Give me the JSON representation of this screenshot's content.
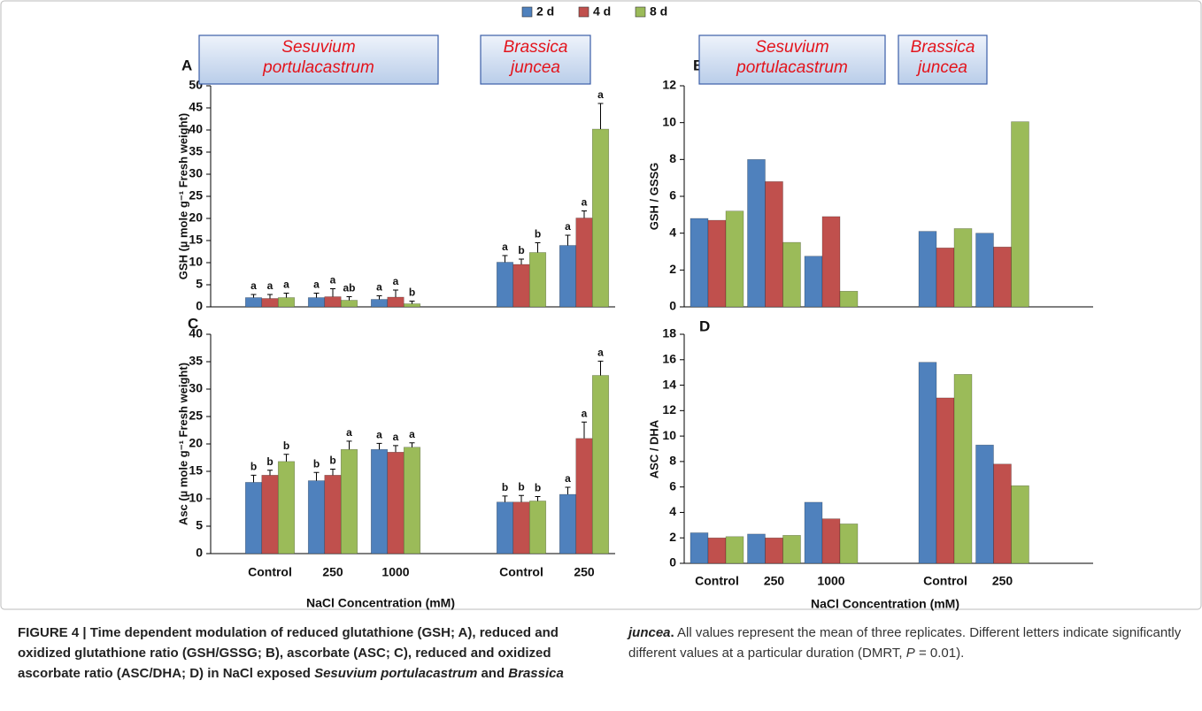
{
  "chart_data": [
    {
      "type": "bar",
      "panel": "A",
      "ylabel": "GSH (µ mole g⁻¹ Fresh weight)",
      "groups": [
        "Sesuvium portulacastrum",
        "Brassica juncea"
      ],
      "categories": [
        null,
        null,
        null,
        null,
        null,
        null
      ],
      "ylim": [
        0,
        50
      ],
      "yticks": [
        0,
        5,
        10,
        15,
        20,
        25,
        30,
        35,
        40,
        45,
        50
      ],
      "series": [
        {
          "name": "2 d",
          "color": "#4f81bd",
          "values": [
            2.1,
            2.1,
            1.7,
            null,
            10.1,
            13.9
          ],
          "errors": [
            0.7,
            1.0,
            0.8,
            null,
            1.5,
            2.3
          ],
          "letters": [
            "a",
            "a",
            "a",
            null,
            "a",
            "a"
          ]
        },
        {
          "name": "4 d",
          "color": "#c0504d",
          "values": [
            1.9,
            2.3,
            2.2,
            null,
            9.6,
            20.1
          ],
          "errors": [
            0.9,
            1.8,
            1.6,
            null,
            1.2,
            1.6
          ],
          "letters": [
            "a",
            "a",
            "a",
            null,
            "b",
            "a"
          ]
        },
        {
          "name": "8 d",
          "color": "#9bbb59",
          "values": [
            2.1,
            1.5,
            0.7,
            null,
            12.3,
            40.2
          ],
          "errors": [
            1.0,
            0.8,
            0.6,
            null,
            2.2,
            5.8
          ],
          "letters": [
            "a",
            "ab",
            "b",
            null,
            "b",
            "a"
          ]
        }
      ]
    },
    {
      "type": "bar",
      "panel": "B",
      "ylabel": "GSH / GSSG",
      "groups": [
        "Sesuvium portulacastrum",
        "Brassica juncea"
      ],
      "categories": [
        null,
        null,
        null,
        null,
        null,
        null
      ],
      "ylim": [
        0,
        12
      ],
      "yticks": [
        0,
        2,
        4,
        6,
        8,
        10,
        12
      ],
      "series": [
        {
          "color": "#4f81bd",
          "values": [
            4.8,
            8.0,
            2.75,
            null,
            4.1,
            4.0
          ]
        },
        {
          "color": "#c0504d",
          "values": [
            4.7,
            6.8,
            4.9,
            null,
            3.2,
            3.25
          ]
        },
        {
          "color": "#9bbb59",
          "values": [
            5.2,
            3.5,
            0.85,
            null,
            4.25,
            10.05
          ]
        }
      ]
    },
    {
      "type": "bar",
      "panel": "C",
      "ylabel": "Asc (µ mole g⁻¹ Fresh weight)",
      "xlabel": "NaCl Concentration (mM)",
      "categories": [
        "Control",
        "250",
        "1000",
        null,
        "Control",
        "250"
      ],
      "ylim": [
        0,
        40
      ],
      "yticks": [
        0,
        5,
        10,
        15,
        20,
        25,
        30,
        35,
        40
      ],
      "series": [
        {
          "color": "#4f81bd",
          "values": [
            13.0,
            13.3,
            19.0,
            null,
            9.4,
            10.8
          ],
          "errors": [
            1.3,
            1.5,
            1.1,
            null,
            1.1,
            1.3
          ],
          "letters": [
            "b",
            "b",
            "a",
            null,
            "b",
            "a"
          ]
        },
        {
          "color": "#c0504d",
          "values": [
            14.3,
            14.3,
            18.5,
            null,
            9.4,
            21.0
          ],
          "errors": [
            0.9,
            1.1,
            1.2,
            null,
            1.2,
            3.0
          ],
          "letters": [
            "b",
            "b",
            "a",
            null,
            "b",
            "a"
          ]
        },
        {
          "color": "#9bbb59",
          "values": [
            16.8,
            19.0,
            19.4,
            null,
            9.6,
            32.5
          ],
          "errors": [
            1.3,
            1.5,
            0.8,
            null,
            0.8,
            2.6
          ],
          "letters": [
            "b",
            "a",
            "a",
            null,
            "b",
            "a"
          ]
        }
      ]
    },
    {
      "type": "bar",
      "panel": "D",
      "ylabel": "ASC / DHA",
      "xlabel": "NaCl Concentration (mM)",
      "categories": [
        "Control",
        "250",
        "1000",
        null,
        "Control",
        "250"
      ],
      "ylim": [
        0,
        18
      ],
      "yticks": [
        0,
        2,
        4,
        6,
        8,
        10,
        12,
        14,
        16,
        18
      ],
      "series": [
        {
          "color": "#4f81bd",
          "values": [
            2.4,
            2.3,
            4.8,
            null,
            15.8,
            9.3
          ]
        },
        {
          "color": "#c0504d",
          "values": [
            2.0,
            2.0,
            3.5,
            null,
            13.0,
            7.8
          ]
        },
        {
          "color": "#9bbb59",
          "values": [
            2.1,
            2.2,
            3.1,
            null,
            14.85,
            6.1
          ]
        }
      ]
    }
  ],
  "caption": [
    "FIGURE 4 | Time dependent modulation of reduced glutathione (GSH; A), reduced and oxidized glutathione ratio (GSH/GSSG; B), ascorbate (ASC; C), reduced and oxidized ascorbate ratio (ASC/DHA; D) in NaCl exposed ",
    "Sesuvium portulacastrum",
    " and ",
    "Brassica juncea",
    ".",
    " All values represent the mean of three replicates. Different letters indicate significantly different values at a particular duration (DMRT, ",
    "P",
    " = 0.01)."
  ]
}
